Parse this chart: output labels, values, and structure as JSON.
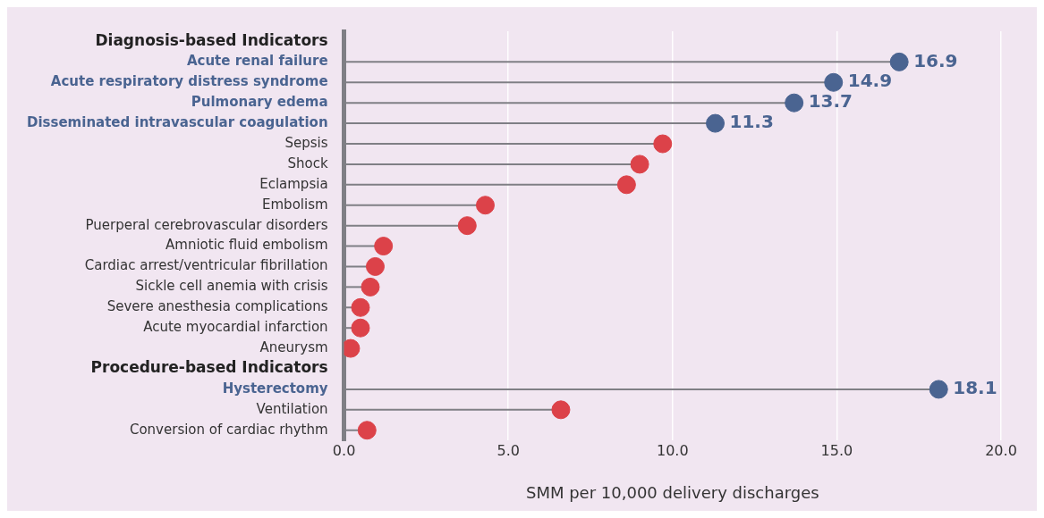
{
  "chart_data": {
    "type": "lollipop",
    "orientation": "horizontal",
    "xlabel": "SMM per 10,000 delivery discharges",
    "categories": [
      "Diagnosis-based Indicators",
      "Acute renal failure",
      "Acute respiratory distress syndrome",
      "Pulmonary edema",
      "Disseminated intravascular coagulation",
      "Sepsis",
      "Shock",
      "Eclampsia",
      "Embolism",
      "Puerperal cerebrovascular disorders",
      "Amniotic fluid embolism",
      "Cardiac arrest/ventricular fibrillation",
      "Sickle cell anemia with crisis",
      "Severe anesthesia complications",
      "Acute myocardial infarction",
      "Aneurysm",
      "Procedure-based Indicators",
      "Hysterectomy",
      "Ventilation",
      "Conversion of cardiac rhythm"
    ],
    "values": [
      null,
      16.9,
      14.9,
      13.7,
      11.3,
      9.7,
      9.0,
      8.6,
      4.3,
      3.75,
      1.2,
      0.95,
      0.8,
      0.5,
      0.5,
      0.2,
      null,
      18.1,
      6.6,
      0.7
    ],
    "colors": [
      null,
      "#4a6491",
      "#4a6491",
      "#4a6491",
      "#4a6491",
      "#dc4249",
      "#dc4249",
      "#dc4249",
      "#dc4249",
      "#dc4249",
      "#dc4249",
      "#dc4249",
      "#dc4249",
      "#dc4249",
      "#dc4249",
      "#dc4249",
      null,
      "#4a6491",
      "#dc4249",
      "#dc4249"
    ],
    "value_labels": [
      null,
      "16.9",
      "14.9",
      "13.7",
      "11.3",
      null,
      null,
      null,
      null,
      null,
      null,
      null,
      null,
      null,
      null,
      null,
      null,
      "18.1",
      null,
      null
    ],
    "xlim": [
      0,
      20
    ],
    "xticks": [
      {
        "value": 0,
        "label": "0.0"
      },
      {
        "value": 5,
        "label": "5.0"
      },
      {
        "value": 10,
        "label": "10.0"
      },
      {
        "value": 15,
        "label": "15.0"
      },
      {
        "value": 20,
        "label": "20.0"
      }
    ],
    "grid": "x",
    "legend": false,
    "marker": "circle"
  }
}
